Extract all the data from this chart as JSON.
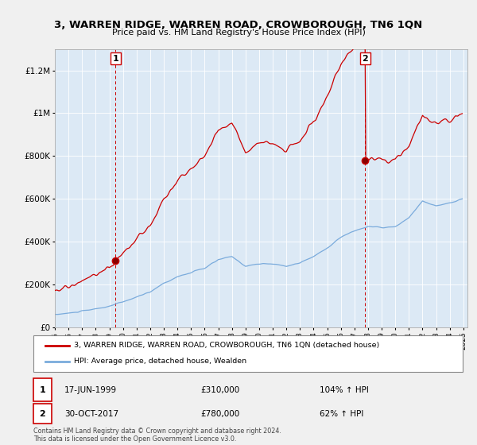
{
  "title": "3, WARREN RIDGE, WARREN ROAD, CROWBOROUGH, TN6 1QN",
  "subtitle": "Price paid vs. HM Land Registry's House Price Index (HPI)",
  "legend_line1": "3, WARREN RIDGE, WARREN ROAD, CROWBOROUGH, TN6 1QN (detached house)",
  "legend_line2": "HPI: Average price, detached house, Wealden",
  "annotation1_label": "1",
  "annotation1_date": "17-JUN-1999",
  "annotation1_price": 310000,
  "annotation1_pct": "104% ↑ HPI",
  "annotation2_label": "2",
  "annotation2_date": "30-OCT-2017",
  "annotation2_price": 780000,
  "annotation2_pct": "62% ↑ HPI",
  "footer": "Contains HM Land Registry data © Crown copyright and database right 2024.\nThis data is licensed under the Open Government Licence v3.0.",
  "sale_color": "#cc0000",
  "hpi_color": "#7aabdc",
  "annotation_vline_color": "#cc0000",
  "plot_bg_color": "#dce9f5",
  "background_color": "#f0f0f0",
  "ylim_min": 0,
  "ylim_max": 1300000
}
